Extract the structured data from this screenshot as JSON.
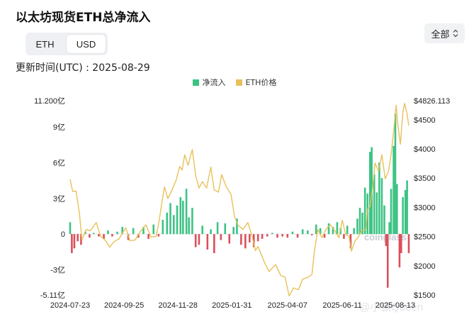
{
  "header": {
    "title": "以太坊现货ETH总净流入"
  },
  "toggle": {
    "options": [
      "ETH",
      "USD"
    ],
    "active": "USD"
  },
  "range_select": {
    "label": "全部"
  },
  "updated": "更新时间(UTC) : 2025-08-29",
  "watermark": "coinglass",
  "watermark_user": "@小镇Queen",
  "colors": {
    "inflow_positive": "#3cc384",
    "inflow_negative": "#d9505c",
    "price": "#e8c15a"
  },
  "chart_data": {
    "type": "bar+line",
    "title": "",
    "legend": [
      "净流入",
      "ETH价格"
    ],
    "legend_position": "top-center",
    "grid": false,
    "x_tick_labels": [
      "2024-07-23",
      "2024-09-25",
      "2024-11-28",
      "2025-01-31",
      "2025-04-07",
      "2025-06-11",
      "2025-08-13"
    ],
    "x_range": [
      "2024-07-23",
      "2025-08-29"
    ],
    "y_left": {
      "ticks": [
        "11.200亿",
        "9亿",
        "6亿",
        "3亿",
        "0",
        "-3亿",
        "-5.11亿"
      ],
      "range": [
        -5.11,
        11.2
      ],
      "unit": "亿 USD"
    },
    "y_right": {
      "ticks": [
        "$4826.113",
        "$4500",
        "$4000",
        "$3500",
        "$3000",
        "$2500",
        "$2000",
        "$1500"
      ],
      "range": [
        1500,
        4826.113
      ],
      "unit": "USD"
    },
    "series": [
      {
        "name": "净流入",
        "type": "bar",
        "points": [
          [
            "2024-07-23",
            1.0
          ],
          [
            "2024-07-25",
            -1.6
          ],
          [
            "2024-07-28",
            -1.2
          ],
          [
            "2024-08-01",
            -0.6
          ],
          [
            "2024-08-05",
            -0.9
          ],
          [
            "2024-08-10",
            0.2
          ],
          [
            "2024-08-15",
            -0.3
          ],
          [
            "2024-08-20",
            0.1
          ],
          [
            "2024-08-26",
            -0.2
          ],
          [
            "2024-09-01",
            -0.4
          ],
          [
            "2024-09-06",
            0.3
          ],
          [
            "2024-09-11",
            -0.2
          ],
          [
            "2024-09-17",
            0.2
          ],
          [
            "2024-09-23",
            0.6
          ],
          [
            "2024-09-30",
            -0.5
          ],
          [
            "2024-10-06",
            0.5
          ],
          [
            "2024-10-12",
            -0.3
          ],
          [
            "2024-10-18",
            0.6
          ],
          [
            "2024-10-24",
            -0.4
          ],
          [
            "2024-10-30",
            0.8
          ],
          [
            "2024-11-05",
            -0.2
          ],
          [
            "2024-11-10",
            1.2
          ],
          [
            "2024-11-15",
            1.8
          ],
          [
            "2024-11-19",
            2.6
          ],
          [
            "2024-11-23",
            1.6
          ],
          [
            "2024-11-27",
            2.4
          ],
          [
            "2024-12-01",
            3.1
          ],
          [
            "2024-12-04",
            2.8
          ],
          [
            "2024-12-08",
            3.8
          ],
          [
            "2024-12-11",
            1.4
          ],
          [
            "2024-12-15",
            2.2
          ],
          [
            "2024-12-19",
            -1.1
          ],
          [
            "2024-12-23",
            -0.9
          ],
          [
            "2024-12-27",
            0.7
          ],
          [
            "2025-01-02",
            -1.3
          ],
          [
            "2025-01-06",
            0.4
          ],
          [
            "2025-01-10",
            -1.6
          ],
          [
            "2025-01-14",
            1.0
          ],
          [
            "2025-01-18",
            -0.5
          ],
          [
            "2025-01-23",
            0.9
          ],
          [
            "2025-01-28",
            -0.8
          ],
          [
            "2025-02-02",
            0.6
          ],
          [
            "2025-02-06",
            1.3
          ],
          [
            "2025-02-11",
            -0.9
          ],
          [
            "2025-02-16",
            -1.2
          ],
          [
            "2025-02-21",
            -0.7
          ],
          [
            "2025-02-26",
            -1.1
          ],
          [
            "2025-03-03",
            -0.6
          ],
          [
            "2025-03-08",
            -0.4
          ],
          [
            "2025-03-14",
            -0.2
          ],
          [
            "2025-03-20",
            0.1
          ],
          [
            "2025-03-26",
            -0.3
          ],
          [
            "2025-04-01",
            -0.2
          ],
          [
            "2025-04-07",
            -0.3
          ],
          [
            "2025-04-13",
            0.2
          ],
          [
            "2025-04-19",
            -0.3
          ],
          [
            "2025-04-25",
            0.4
          ],
          [
            "2025-05-01",
            0.3
          ],
          [
            "2025-05-06",
            -0.1
          ],
          [
            "2025-05-11",
            0.8
          ],
          [
            "2025-05-16",
            0.5
          ],
          [
            "2025-05-21",
            -0.3
          ],
          [
            "2025-05-26",
            0.9
          ],
          [
            "2025-05-31",
            0.6
          ],
          [
            "2025-06-05",
            1.0
          ],
          [
            "2025-06-09",
            0.5
          ],
          [
            "2025-06-13",
            -0.4
          ],
          [
            "2025-06-17",
            0.7
          ],
          [
            "2025-06-21",
            -1.2
          ],
          [
            "2025-06-25",
            0.5
          ],
          [
            "2025-06-29",
            1.3
          ],
          [
            "2025-07-02",
            2.2
          ],
          [
            "2025-07-05",
            1.8
          ],
          [
            "2025-07-08",
            3.9
          ],
          [
            "2025-07-11",
            3.4
          ],
          [
            "2025-07-14",
            6.9
          ],
          [
            "2025-07-16",
            7.3
          ],
          [
            "2025-07-19",
            5.0
          ],
          [
            "2025-07-22",
            3.5
          ],
          [
            "2025-07-25",
            6.0
          ],
          [
            "2025-07-28",
            4.7
          ],
          [
            "2025-07-31",
            2.4
          ],
          [
            "2025-08-02",
            -1.0
          ],
          [
            "2025-08-04",
            -4.5
          ],
          [
            "2025-08-06",
            1.0
          ],
          [
            "2025-08-08",
            3.8
          ],
          [
            "2025-08-11",
            7.4
          ],
          [
            "2025-08-13",
            10.1
          ],
          [
            "2025-08-15",
            4.2
          ],
          [
            "2025-08-18",
            -2.8
          ],
          [
            "2025-08-20",
            -1.6
          ],
          [
            "2025-08-22",
            3.1
          ],
          [
            "2025-08-25",
            3.7
          ],
          [
            "2025-08-27",
            4.5
          ],
          [
            "2025-08-29",
            -1.6
          ]
        ]
      },
      {
        "name": "ETH价格",
        "type": "line",
        "points": [
          [
            "2024-07-23",
            3480
          ],
          [
            "2024-07-26",
            3270
          ],
          [
            "2024-07-30",
            3280
          ],
          [
            "2024-08-03",
            2900
          ],
          [
            "2024-08-06",
            2440
          ],
          [
            "2024-08-11",
            2620
          ],
          [
            "2024-08-16",
            2600
          ],
          [
            "2024-08-23",
            2740
          ],
          [
            "2024-08-28",
            2510
          ],
          [
            "2024-09-03",
            2430
          ],
          [
            "2024-09-08",
            2320
          ],
          [
            "2024-09-13",
            2410
          ],
          [
            "2024-09-19",
            2460
          ],
          [
            "2024-09-27",
            2650
          ],
          [
            "2024-10-02",
            2430
          ],
          [
            "2024-10-08",
            2440
          ],
          [
            "2024-10-14",
            2580
          ],
          [
            "2024-10-21",
            2700
          ],
          [
            "2024-10-27",
            2490
          ],
          [
            "2024-11-02",
            2500
          ],
          [
            "2024-11-06",
            2790
          ],
          [
            "2024-11-09",
            3100
          ],
          [
            "2024-11-12",
            3350
          ],
          [
            "2024-11-16",
            3150
          ],
          [
            "2024-11-21",
            3300
          ],
          [
            "2024-11-26",
            3470
          ],
          [
            "2024-11-30",
            3700
          ],
          [
            "2024-12-03",
            3640
          ],
          [
            "2024-12-06",
            3900
          ],
          [
            "2024-12-10",
            3720
          ],
          [
            "2024-12-15",
            3990
          ],
          [
            "2024-12-19",
            3540
          ],
          [
            "2024-12-23",
            3330
          ],
          [
            "2024-12-27",
            3440
          ],
          [
            "2025-01-01",
            3330
          ],
          [
            "2025-01-06",
            3690
          ],
          [
            "2025-01-10",
            3300
          ],
          [
            "2025-01-15",
            3260
          ],
          [
            "2025-01-19",
            3560
          ],
          [
            "2025-01-24",
            3360
          ],
          [
            "2025-01-30",
            3220
          ],
          [
            "2025-02-03",
            2850
          ],
          [
            "2025-02-07",
            2700
          ],
          [
            "2025-02-13",
            2620
          ],
          [
            "2025-02-19",
            2740
          ],
          [
            "2025-02-24",
            2500
          ],
          [
            "2025-02-28",
            2260
          ],
          [
            "2025-03-03",
            2330
          ],
          [
            "2025-03-10",
            2080
          ],
          [
            "2025-03-16",
            1900
          ],
          [
            "2025-03-24",
            2020
          ],
          [
            "2025-03-30",
            1830
          ],
          [
            "2025-04-04",
            1810
          ],
          [
            "2025-04-09",
            1480
          ],
          [
            "2025-04-14",
            1620
          ],
          [
            "2025-04-20",
            1590
          ],
          [
            "2025-04-25",
            1770
          ],
          [
            "2025-05-01",
            1800
          ],
          [
            "2025-05-06",
            1850
          ],
          [
            "2025-05-09",
            2250
          ],
          [
            "2025-05-13",
            2620
          ],
          [
            "2025-05-18",
            2480
          ],
          [
            "2025-05-23",
            2630
          ],
          [
            "2025-05-28",
            2700
          ],
          [
            "2025-06-02",
            2600
          ],
          [
            "2025-06-07",
            2480
          ],
          [
            "2025-06-11",
            2780
          ],
          [
            "2025-06-15",
            2540
          ],
          [
            "2025-06-19",
            2500
          ],
          [
            "2025-06-22",
            2250
          ],
          [
            "2025-06-26",
            2420
          ],
          [
            "2025-06-30",
            2490
          ],
          [
            "2025-07-04",
            2600
          ],
          [
            "2025-07-09",
            2620
          ],
          [
            "2025-07-11",
            2960
          ],
          [
            "2025-07-14",
            3010
          ],
          [
            "2025-07-17",
            3330
          ],
          [
            "2025-07-20",
            3760
          ],
          [
            "2025-07-24",
            3620
          ],
          [
            "2025-07-28",
            3900
          ],
          [
            "2025-08-01",
            3490
          ],
          [
            "2025-08-05",
            3620
          ],
          [
            "2025-08-08",
            3900
          ],
          [
            "2025-08-11",
            4300
          ],
          [
            "2025-08-14",
            4750
          ],
          [
            "2025-08-16",
            4420
          ],
          [
            "2025-08-19",
            4080
          ],
          [
            "2025-08-22",
            4630
          ],
          [
            "2025-08-24",
            4780
          ],
          [
            "2025-08-27",
            4600
          ],
          [
            "2025-08-29",
            4400
          ]
        ]
      }
    ]
  }
}
